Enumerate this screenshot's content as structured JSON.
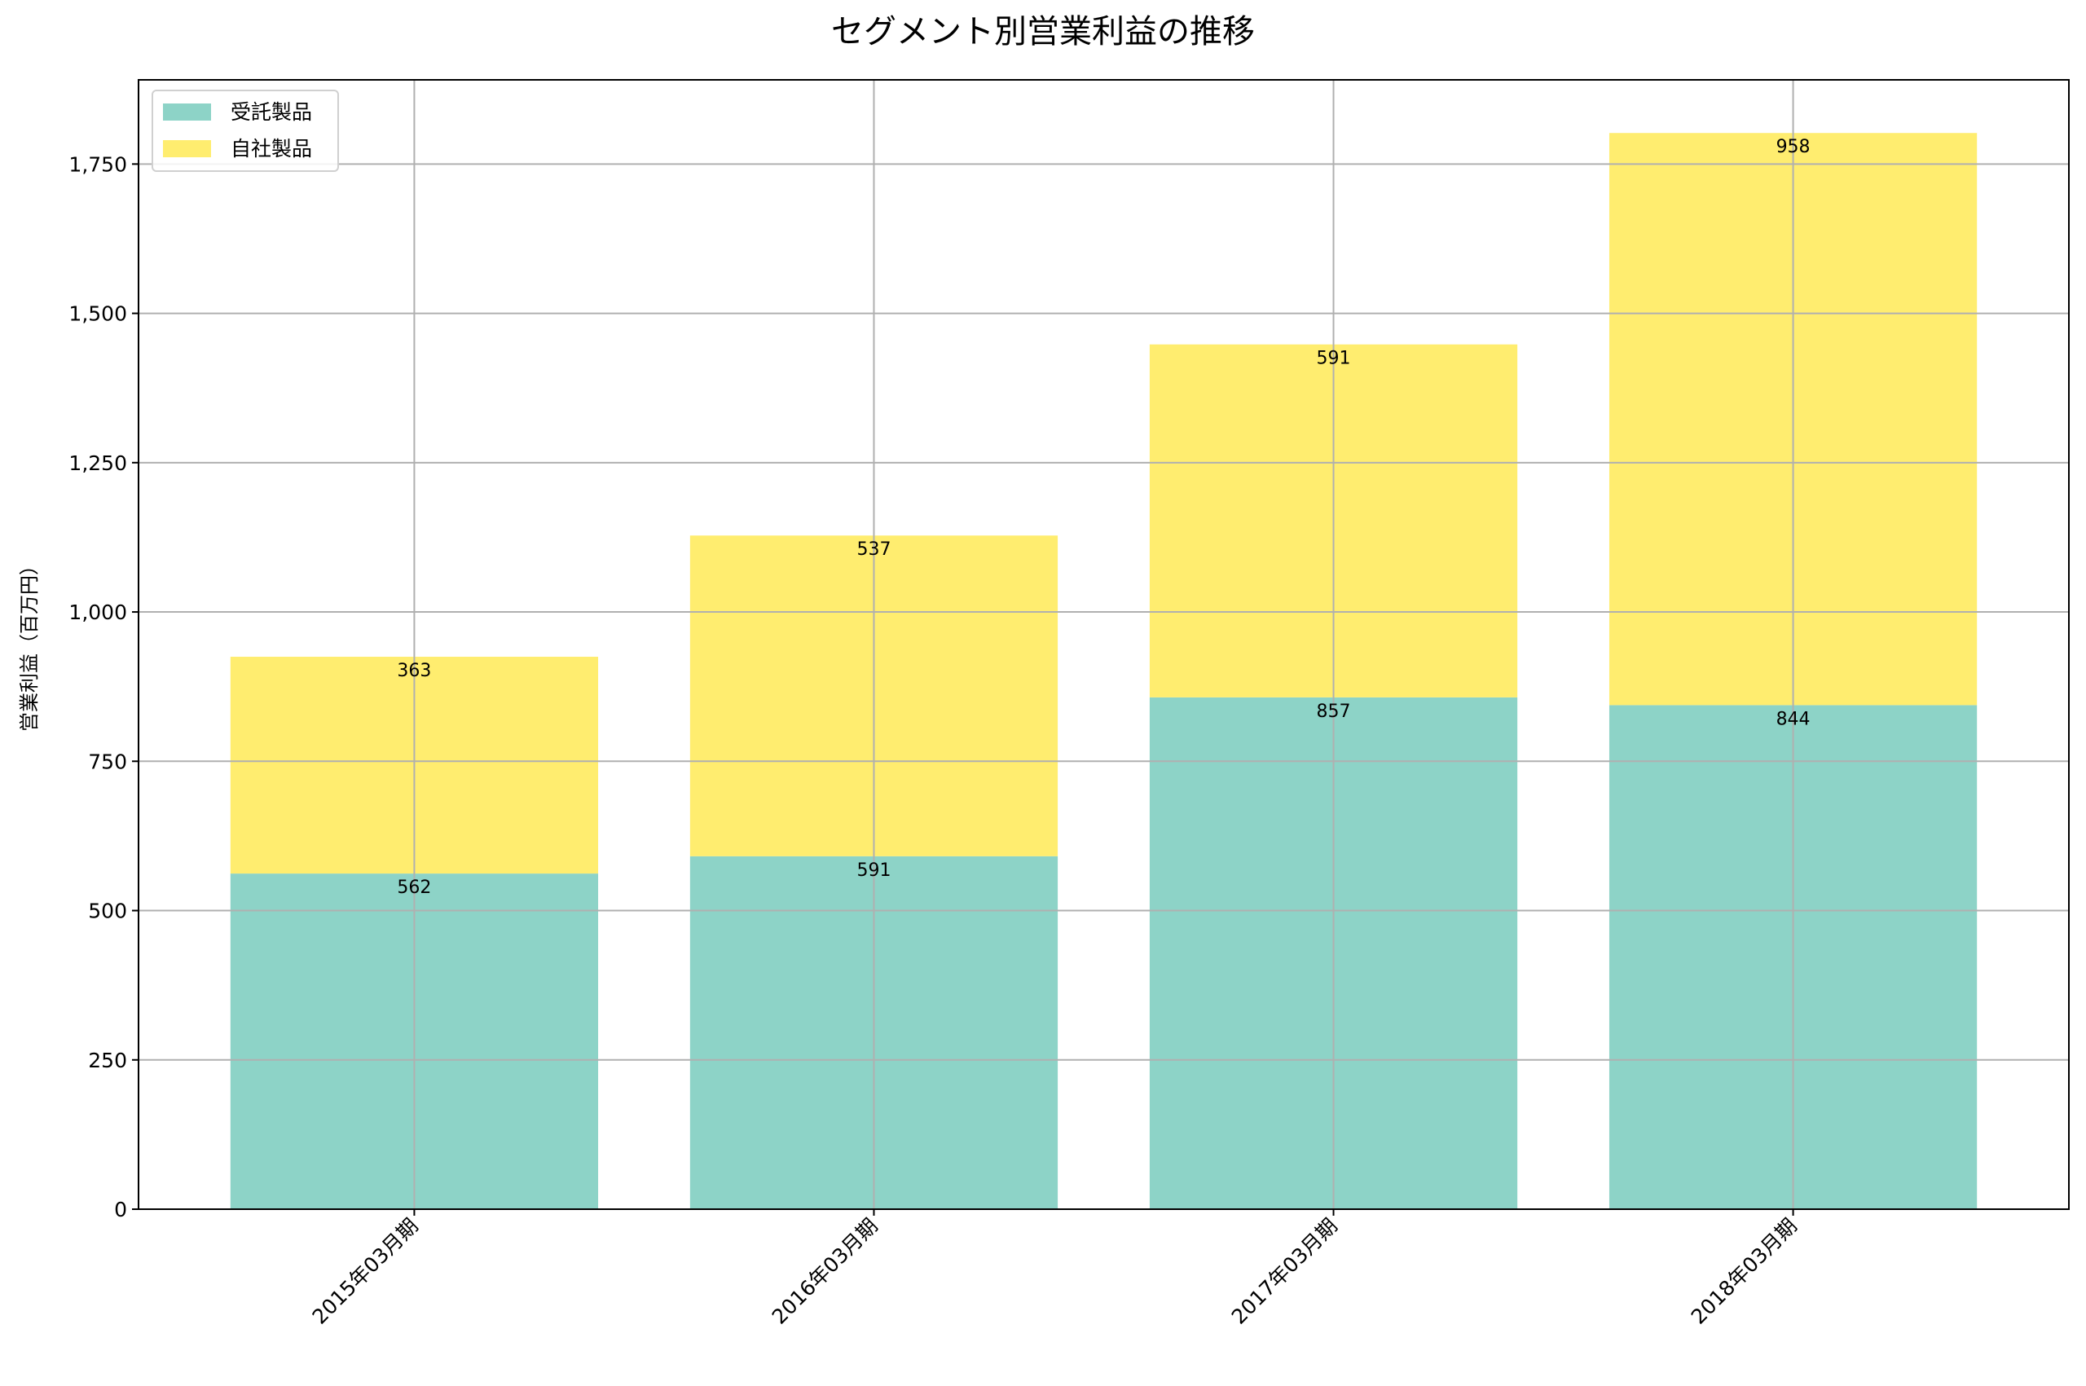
{
  "chart_data": {
    "type": "bar",
    "stacked": true,
    "title": "セグメント別営業利益の推移",
    "xlabel": "",
    "ylabel": "営業利益（百万円）",
    "categories": [
      "2015年03月期",
      "2016年03月期",
      "2017年03月期",
      "2018年03月期"
    ],
    "series": [
      {
        "name": "受託製品",
        "color": "#8dd3c7",
        "values": [
          562,
          591,
          857,
          844
        ]
      },
      {
        "name": "自社製品",
        "color": "#ffed6f",
        "values": [
          363,
          537,
          591,
          958
        ]
      }
    ],
    "ylim": [
      0,
      1891
    ],
    "yticks": [
      0,
      250,
      500,
      750,
      1000,
      1250,
      1500,
      1750
    ],
    "ytick_labels": [
      "0",
      "250",
      "500",
      "750",
      "1,000",
      "1,250",
      "1,500",
      "1,750"
    ],
    "grid": true,
    "legend_position": "top-left"
  }
}
